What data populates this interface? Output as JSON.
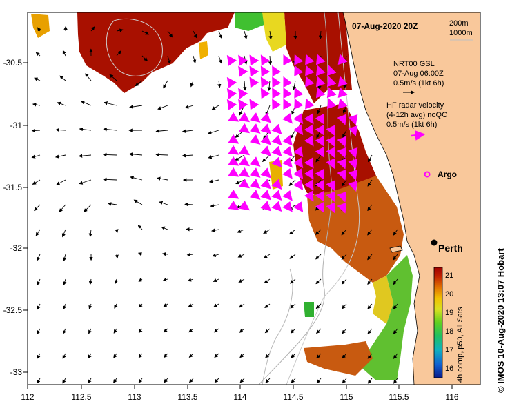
{
  "map": {
    "title": "07-Aug-2020 20Z",
    "depth_legend": [
      "200m",
      "1000m"
    ],
    "x_ticks": [
      "112",
      "112.5",
      "113",
      "113.5",
      "114",
      "114.5",
      "115",
      "115.5",
      "116"
    ],
    "y_ticks": [
      "-30.5",
      "-31",
      "-31.5",
      "-32",
      "-32.5",
      "-33"
    ],
    "x_range": [
      112,
      116.3
    ],
    "y_range": [
      -33.1,
      -30.05
    ],
    "land_color": "#f9c89b",
    "arrow_color": "#000000",
    "radar_arrow_color": "#ff00ff"
  },
  "legend": {
    "gsl_line1": "NRT00 GSL",
    "gsl_line2": "07-Aug 06:00Z",
    "gsl_line3": "0.5m/s (1kt 6h)",
    "hf_line1": "HF radar velocity",
    "hf_line2": "(4-12h avg) noQC",
    "hf_line3": "0.5m/s (1kt 6h)",
    "argo_label": "Argo"
  },
  "places": {
    "perth": "Perth"
  },
  "colorbar": {
    "ticks": [
      "21",
      "20",
      "19",
      "18",
      "17",
      "16"
    ],
    "range": [
      15.6,
      21.4
    ],
    "caption": "4h comp, p50, All Sats"
  },
  "credit": "© IMOS 10-Aug-2020 13:07 Hobart"
}
